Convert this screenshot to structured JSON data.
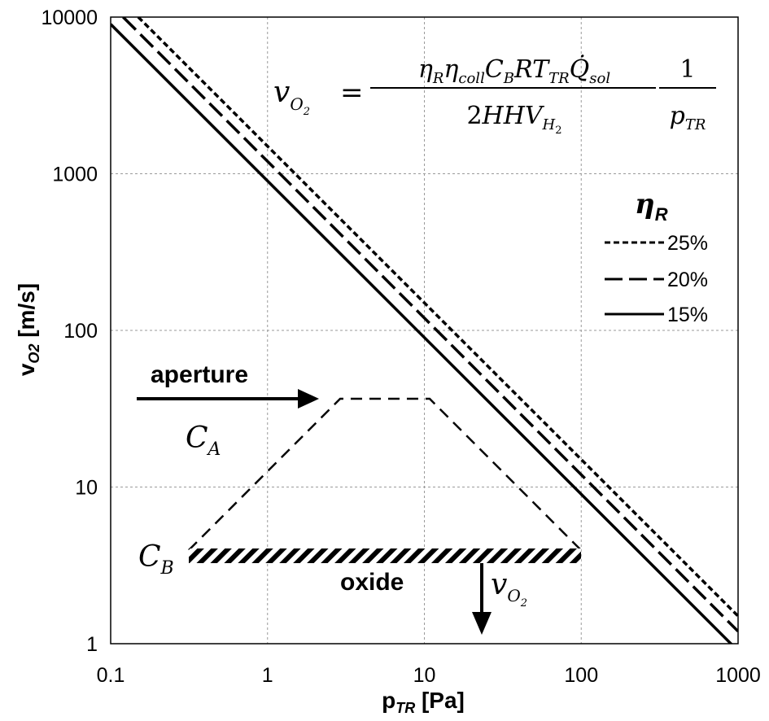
{
  "chart_data": {
    "type": "line",
    "xscale": "log",
    "yscale": "log",
    "xlim": [
      0.1,
      1000
    ],
    "ylim": [
      1,
      10000
    ],
    "grid": true,
    "legend_placement": "right",
    "xlabel": {
      "main": "p",
      "sub": "TR",
      "unit": " [Pa]"
    },
    "ylabel": {
      "main": "v",
      "sub": "O2",
      "unit": " [m/s]"
    },
    "x_tick_labels": [
      "0.1",
      "1",
      "10",
      "100",
      "1000"
    ],
    "y_tick_labels": [
      "1",
      "10",
      "100",
      "1000",
      "10000"
    ],
    "legend": {
      "title": "η",
      "title_sub": "R"
    },
    "series": [
      {
        "name": "25%",
        "style": "dotted",
        "x": [
          0.15,
          1000
        ],
        "y": [
          10000,
          1.5
        ]
      },
      {
        "name": "20%",
        "style": "dashed",
        "x": [
          0.12,
          1000
        ],
        "y": [
          10000,
          1.2
        ]
      },
      {
        "name": "15%",
        "style": "solid",
        "x": [
          0.1,
          1000
        ],
        "y": [
          9000,
          0.9
        ]
      }
    ],
    "equation": {
      "lhs": "v",
      "lhs_sub": "O",
      "lhs_subsub": "2",
      "eq": "=",
      "numerator": "ηRηcollCBRTTRQ̇sol",
      "denominator": "2HHVH2",
      "numerator2": "1",
      "denominator2": "pTR"
    },
    "inset": {
      "aperture_label": "aperture",
      "oxide_label": "oxide",
      "ca": {
        "main": "C",
        "sub": "A"
      },
      "cb": {
        "main": "C",
        "sub": "B"
      },
      "flow": {
        "main": "v",
        "sub": "O",
        "subsub": "2"
      }
    }
  }
}
